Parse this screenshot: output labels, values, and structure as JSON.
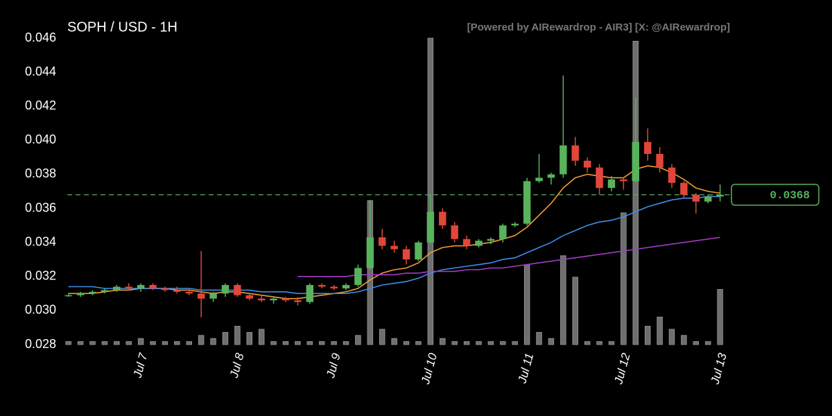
{
  "chart_data": {
    "type": "candlestick",
    "title": "SOPH / USD - 1H",
    "subtitle": "[Powered by AIRewardrop - AIR3] [X: @AIRewardrop]",
    "open": [
      0.0309,
      0.0309,
      0.031,
      0.0311,
      0.0312,
      0.0314,
      0.0313,
      0.0315,
      0.0313,
      0.0312,
      0.0311,
      0.031,
      0.0307,
      0.031,
      0.0315,
      0.0309,
      0.0307,
      0.0306,
      0.0307,
      0.0306,
      0.0305,
      0.0315,
      0.0314,
      0.0313,
      0.0315,
      0.0325,
      0.0343,
      0.0338,
      0.0336,
      0.033,
      0.034,
      0.0358,
      0.035,
      0.0342,
      0.0338,
      0.0341,
      0.0342,
      0.035,
      0.0351,
      0.0376,
      0.0378,
      0.038,
      0.0397,
      0.0388,
      0.0384,
      0.0372,
      0.0377,
      0.0376,
      0.0399,
      0.0392,
      0.0384,
      0.0375,
      0.0368,
      0.0364,
      0.0367
    ],
    "high": [
      0.031,
      0.0311,
      0.0312,
      0.0313,
      0.0315,
      0.0316,
      0.0316,
      0.0316,
      0.0314,
      0.0314,
      0.0313,
      0.0335,
      0.0311,
      0.0316,
      0.0316,
      0.031,
      0.0309,
      0.0308,
      0.0308,
      0.0308,
      0.0316,
      0.0316,
      0.0315,
      0.0316,
      0.0327,
      0.0365,
      0.0348,
      0.0341,
      0.0338,
      0.0341,
      0.0368,
      0.036,
      0.0352,
      0.0344,
      0.0342,
      0.0343,
      0.0351,
      0.0352,
      0.0378,
      0.0392,
      0.0381,
      0.0438,
      0.0402,
      0.039,
      0.0386,
      0.0379,
      0.0378,
      0.0425,
      0.0407,
      0.0396,
      0.0386,
      0.0376,
      0.0369,
      0.0368,
      0.0374
    ],
    "low": [
      0.0308,
      0.0308,
      0.0309,
      0.031,
      0.0311,
      0.0312,
      0.0311,
      0.0312,
      0.0311,
      0.031,
      0.0309,
      0.0296,
      0.0305,
      0.0308,
      0.0308,
      0.0306,
      0.0305,
      0.0304,
      0.0305,
      0.0303,
      0.0304,
      0.0313,
      0.0312,
      0.0312,
      0.0314,
      0.0324,
      0.0336,
      0.0334,
      0.0327,
      0.0329,
      0.0339,
      0.0348,
      0.034,
      0.0336,
      0.0337,
      0.0339,
      0.034,
      0.0349,
      0.035,
      0.0375,
      0.0374,
      0.0378,
      0.0385,
      0.0381,
      0.0368,
      0.037,
      0.0371,
      0.0375,
      0.0388,
      0.0381,
      0.0372,
      0.0366,
      0.0357,
      0.0363,
      0.0364
    ],
    "close": [
      0.0309,
      0.031,
      0.0311,
      0.0312,
      0.0314,
      0.0313,
      0.0315,
      0.0313,
      0.0312,
      0.0311,
      0.031,
      0.0307,
      0.031,
      0.0315,
      0.0309,
      0.0307,
      0.0306,
      0.0307,
      0.0306,
      0.0305,
      0.0315,
      0.0314,
      0.0313,
      0.0315,
      0.0325,
      0.0343,
      0.0338,
      0.0336,
      0.033,
      0.034,
      0.0358,
      0.035,
      0.0342,
      0.0338,
      0.0341,
      0.0342,
      0.035,
      0.0351,
      0.0376,
      0.0378,
      0.038,
      0.0397,
      0.0388,
      0.0384,
      0.0372,
      0.0377,
      0.0376,
      0.0399,
      0.0392,
      0.0384,
      0.0375,
      0.0368,
      0.0364,
      0.0367,
      0.0368
    ],
    "volume": [
      1,
      1,
      1,
      1,
      1,
      1,
      2,
      1,
      1,
      1,
      1,
      3,
      2,
      4,
      6,
      4,
      5,
      1,
      1,
      1,
      1,
      1,
      1,
      1,
      3,
      47,
      5,
      2,
      1,
      1,
      100,
      2,
      1,
      1,
      1,
      1,
      1,
      1,
      26,
      4,
      2,
      29,
      22,
      1,
      1,
      1,
      43,
      99,
      6,
      9,
      5,
      3,
      1,
      1,
      18
    ],
    "lines": [
      {
        "color": "#f39c34",
        "values": [
          0.031,
          0.031,
          0.031,
          0.0311,
          0.0312,
          0.0312,
          0.0313,
          0.0313,
          0.0313,
          0.0312,
          0.0312,
          0.0311,
          0.031,
          0.0311,
          0.0311,
          0.031,
          0.0309,
          0.0308,
          0.0307,
          0.0307,
          0.0308,
          0.0309,
          0.031,
          0.0311,
          0.0313,
          0.0318,
          0.0322,
          0.0324,
          0.0325,
          0.0328,
          0.0334,
          0.0337,
          0.0338,
          0.0338,
          0.0339,
          0.034,
          0.0342,
          0.0344,
          0.0349,
          0.0356,
          0.0363,
          0.0372,
          0.0378,
          0.038,
          0.0379,
          0.0378,
          0.0378,
          0.0383,
          0.0385,
          0.0384,
          0.0381,
          0.0377,
          0.0372,
          0.037,
          0.0369
        ]
      },
      {
        "color": "#3d8fe8",
        "values": [
          0.0314,
          0.0314,
          0.0314,
          0.0313,
          0.0313,
          0.0313,
          0.0313,
          0.0313,
          0.0313,
          0.0313,
          0.0313,
          0.0312,
          0.0312,
          0.0312,
          0.0312,
          0.0312,
          0.0311,
          0.0311,
          0.0311,
          0.031,
          0.031,
          0.031,
          0.031,
          0.031,
          0.0311,
          0.0313,
          0.0315,
          0.0316,
          0.0317,
          0.0319,
          0.0322,
          0.0324,
          0.0325,
          0.0326,
          0.0327,
          0.0328,
          0.033,
          0.0331,
          0.0334,
          0.0337,
          0.034,
          0.0344,
          0.0347,
          0.035,
          0.0352,
          0.0353,
          0.0355,
          0.0358,
          0.0361,
          0.0363,
          0.0365,
          0.0366,
          0.0366,
          0.0367,
          0.0367
        ]
      },
      {
        "color": "#a53bc4",
        "values": [
          null,
          null,
          null,
          null,
          null,
          null,
          null,
          null,
          null,
          null,
          null,
          null,
          null,
          null,
          null,
          null,
          null,
          null,
          null,
          0.032,
          0.032,
          0.032,
          0.032,
          0.032,
          0.0321,
          0.0321,
          0.0321,
          0.0321,
          0.0322,
          0.0322,
          0.0323,
          0.0323,
          0.0323,
          0.0324,
          0.0324,
          0.0325,
          0.0325,
          0.0326,
          0.0327,
          0.0328,
          0.0329,
          0.033,
          0.0331,
          0.0332,
          0.0333,
          0.0334,
          0.0335,
          0.0336,
          0.0337,
          0.0338,
          0.0339,
          0.034,
          0.0341,
          0.0342,
          0.0343
        ]
      }
    ],
    "up_color": "#58b35c",
    "down_color": "#e2463a",
    "volume_color": "#6e6e6e",
    "last_price": 0.0368,
    "xlim": [
      -0.5,
      55
    ],
    "xticks": [
      {
        "value": 6,
        "label": "Jul 7"
      },
      {
        "value": 14,
        "label": "Jul 8"
      },
      {
        "value": 22,
        "label": "Jul 9"
      },
      {
        "value": 30,
        "label": "Jul 10"
      },
      {
        "value": 38,
        "label": "Jul 11"
      },
      {
        "value": 46,
        "label": "Jul 12"
      },
      {
        "value": 54,
        "label": "Jul 13"
      }
    ],
    "ylim": [
      0.028,
      0.046
    ],
    "yticks": [
      0.028,
      {
        "value": 0.03,
        "label": "0.030"
      },
      0.032,
      0.034,
      0.036,
      0.038,
      {
        "value": 0.04,
        "label": "0.040"
      },
      0.042,
      0.044,
      0.046
    ],
    "y2lim": [
      0,
      100
    ]
  }
}
